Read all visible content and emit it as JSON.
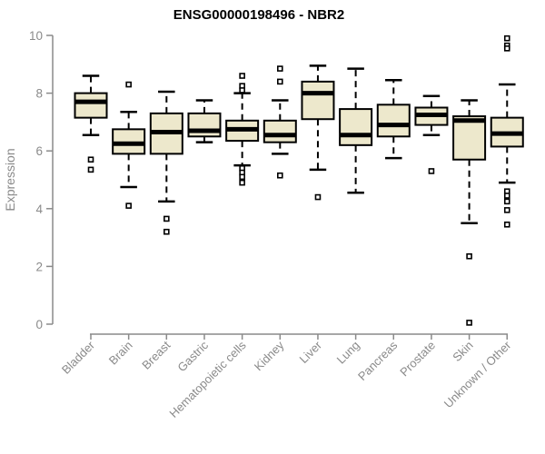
{
  "title": "ENSG00000198496 - NBR2",
  "chart_data": {
    "type": "boxplot",
    "title": "ENSG00000198496 - NBR2",
    "xlabel": "",
    "ylabel": "Expression",
    "ylim": [
      0,
      10
    ],
    "yticks": [
      0,
      2,
      4,
      6,
      8,
      10
    ],
    "grid": false,
    "legend": "none",
    "axis_color": "#8a8a8a",
    "box_fill": "#ede8cc",
    "box_stroke": "#000000",
    "categories": [
      "Bladder",
      "Brain",
      "Breast",
      "Gastric",
      "Hematopoietic cells",
      "Kidney",
      "Liver",
      "Lung",
      "Pancreas",
      "Prostate",
      "Skin",
      "Unknown / Other"
    ],
    "series": [
      {
        "name": "Bladder",
        "low": 6.55,
        "q1": 7.15,
        "median": 7.7,
        "q3": 8.0,
        "high": 8.6,
        "outliers": [
          5.7,
          5.35
        ]
      },
      {
        "name": "Brain",
        "low": 4.75,
        "q1": 5.9,
        "median": 6.25,
        "q3": 6.75,
        "high": 7.35,
        "outliers": [
          8.3,
          4.1
        ]
      },
      {
        "name": "Breast",
        "low": 4.25,
        "q1": 5.9,
        "median": 6.65,
        "q3": 7.3,
        "high": 8.05,
        "outliers": [
          3.65,
          3.2
        ]
      },
      {
        "name": "Gastric",
        "low": 6.3,
        "q1": 6.5,
        "median": 6.7,
        "q3": 7.3,
        "high": 7.75,
        "outliers": []
      },
      {
        "name": "Hematopoietic cells",
        "low": 5.5,
        "q1": 6.35,
        "median": 6.75,
        "q3": 7.05,
        "high": 8.0,
        "outliers": [
          8.6,
          8.25,
          8.1,
          5.4,
          5.25,
          5.1,
          4.9
        ]
      },
      {
        "name": "Kidney",
        "low": 5.9,
        "q1": 6.3,
        "median": 6.55,
        "q3": 7.05,
        "high": 7.75,
        "outliers": [
          8.85,
          8.4,
          5.15
        ]
      },
      {
        "name": "Liver",
        "low": 5.35,
        "q1": 7.1,
        "median": 8.0,
        "q3": 8.4,
        "high": 8.95,
        "outliers": [
          4.4
        ]
      },
      {
        "name": "Lung",
        "low": 4.55,
        "q1": 6.2,
        "median": 6.55,
        "q3": 7.45,
        "high": 8.85,
        "outliers": []
      },
      {
        "name": "Pancreas",
        "low": 5.75,
        "q1": 6.5,
        "median": 6.9,
        "q3": 7.6,
        "high": 8.45,
        "outliers": []
      },
      {
        "name": "Prostate",
        "low": 6.55,
        "q1": 6.9,
        "median": 7.25,
        "q3": 7.5,
        "high": 7.9,
        "outliers": [
          5.3
        ]
      },
      {
        "name": "Skin",
        "low": 3.5,
        "q1": 5.7,
        "median": 7.05,
        "q3": 7.2,
        "high": 7.75,
        "outliers": [
          2.35,
          0.05
        ]
      },
      {
        "name": "Unknown / Other",
        "low": 4.9,
        "q1": 6.15,
        "median": 6.6,
        "q3": 7.15,
        "high": 8.3,
        "outliers": [
          9.9,
          9.65,
          9.55,
          4.6,
          4.45,
          4.25,
          3.95,
          3.45
        ]
      }
    ]
  }
}
